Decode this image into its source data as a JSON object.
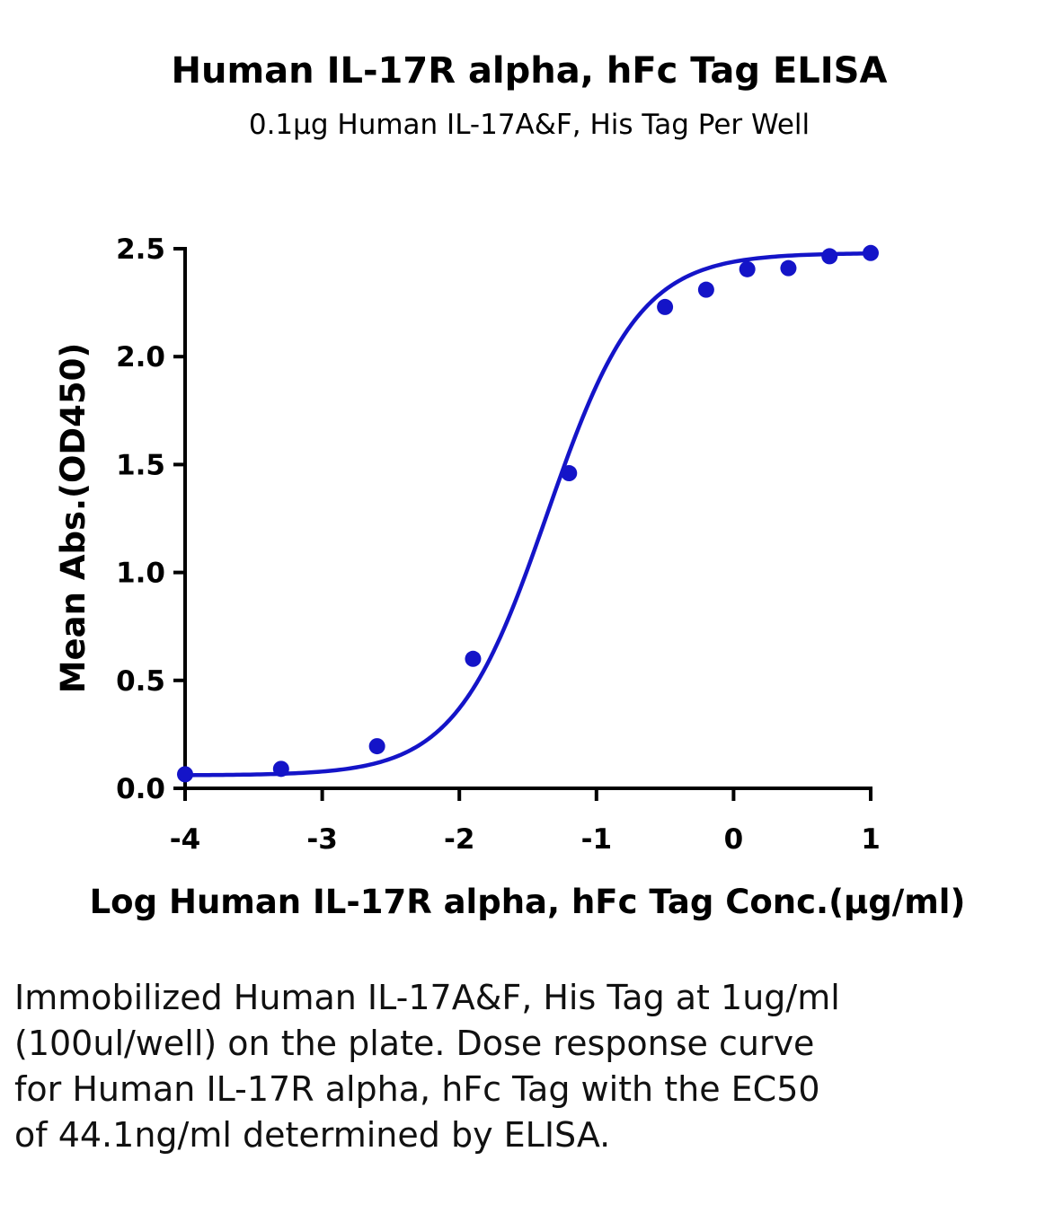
{
  "chart_data": {
    "type": "scatter",
    "title": "Human IL-17R alpha, hFc Tag ELISA",
    "subtitle": "0.1μg Human IL-17A&F, His Tag Per Well",
    "xlabel": "Log Human IL-17R alpha, hFc Tag Conc.(μg/ml)",
    "ylabel": "Mean Abs.(OD450)",
    "xlim": [
      -4,
      1
    ],
    "ylim": [
      0,
      2.5
    ],
    "x_ticks": [
      -4,
      -3,
      -2,
      -1,
      0,
      1
    ],
    "x_tick_labels": [
      "-4",
      "-3",
      "-2",
      "-1",
      "0",
      "1"
    ],
    "y_ticks": [
      0,
      0.5,
      1.0,
      1.5,
      2.0,
      2.5
    ],
    "y_tick_labels": [
      "0.0",
      "0.5",
      "1.0",
      "1.5",
      "2.0",
      "2.5"
    ],
    "grid": false,
    "color": "#1414c8",
    "series": [
      {
        "x": [
          -4.0,
          -3.3,
          -2.6,
          -1.9,
          -1.2,
          -0.5,
          -0.2,
          0.1,
          0.4,
          0.7,
          1.0
        ],
        "y": [
          0.065,
          0.09,
          0.195,
          0.6,
          1.46,
          2.23,
          2.31,
          2.405,
          2.41,
          2.465,
          2.48
        ]
      }
    ],
    "fit_curve": {
      "model": "4PL",
      "bottom": 0.06,
      "top": 2.48,
      "log_ec50": -1.36,
      "hill": 1.3
    }
  },
  "caption": "Immobilized Human IL-17A&F, His Tag at 1ug/ml (100ul/well) on the plate. Dose response curve for Human IL-17R alpha, hFc Tag with the EC50 of 44.1ng/ml determined by ELISA."
}
